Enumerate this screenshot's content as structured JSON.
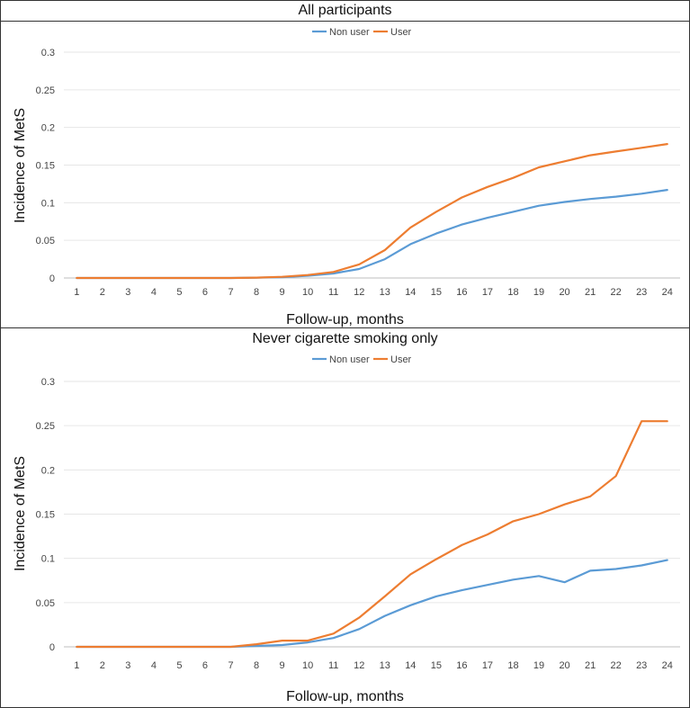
{
  "chart_data": [
    {
      "type": "line",
      "title": "All participants",
      "xlabel": "Follow-up, months",
      "ylabel": "Incidence of MetS",
      "x": [
        1,
        2,
        3,
        4,
        5,
        6,
        7,
        8,
        9,
        10,
        11,
        12,
        13,
        14,
        15,
        16,
        17,
        18,
        19,
        20,
        21,
        22,
        23,
        24
      ],
      "ylim": [
        0,
        0.3
      ],
      "yticks": [
        "0",
        "0.05",
        "0.1",
        "0.15",
        "0.2",
        "0.25",
        "0.3"
      ],
      "ytick_values": [
        0,
        0.05,
        0.1,
        0.15,
        0.2,
        0.25,
        0.3
      ],
      "legend_position": "top-center",
      "grid": true,
      "series": [
        {
          "name": "Non user",
          "color": "#5B9BD5",
          "values": [
            0,
            0,
            0,
            0,
            0,
            0,
            0,
            0.0005,
            0.001,
            0.003,
            0.006,
            0.012,
            0.025,
            0.045,
            0.059,
            0.071,
            0.08,
            0.088,
            0.096,
            0.101,
            0.105,
            0.108,
            0.112,
            0.117
          ]
        },
        {
          "name": "User",
          "color": "#ED7D31",
          "values": [
            0,
            0,
            0,
            0,
            0,
            0,
            0,
            0.0005,
            0.0015,
            0.004,
            0.008,
            0.018,
            0.037,
            0.067,
            0.088,
            0.107,
            0.121,
            0.133,
            0.147,
            0.155,
            0.163,
            0.168,
            0.173,
            0.178
          ]
        }
      ]
    },
    {
      "type": "line",
      "title": "Never cigarette smoking only",
      "xlabel": "Follow-up, months",
      "ylabel": "Incidence of MetS",
      "x": [
        1,
        2,
        3,
        4,
        5,
        6,
        7,
        8,
        9,
        10,
        11,
        12,
        13,
        14,
        15,
        16,
        17,
        18,
        19,
        20,
        21,
        22,
        23,
        24
      ],
      "ylim": [
        0,
        0.3
      ],
      "yticks": [
        "0",
        "0.05",
        "0.1",
        "0.15",
        "0.2",
        "0.25",
        "0.3"
      ],
      "ytick_values": [
        0,
        0.05,
        0.1,
        0.15,
        0.2,
        0.25,
        0.3
      ],
      "legend_position": "top-center",
      "grid": true,
      "series": [
        {
          "name": "Non user",
          "color": "#5B9BD5",
          "values": [
            0,
            0,
            0,
            0,
            0,
            0,
            0,
            0.001,
            0.002,
            0.005,
            0.01,
            0.02,
            0.035,
            0.047,
            0.057,
            0.064,
            0.07,
            0.076,
            0.08,
            0.073,
            0.086,
            0.088,
            0.092,
            0.098
          ]
        },
        {
          "name": "User",
          "color": "#ED7D31",
          "values": [
            0,
            0,
            0,
            0,
            0,
            0,
            0,
            0.003,
            0.007,
            0.007,
            0.015,
            0.033,
            0.057,
            0.082,
            0.099,
            0.115,
            0.127,
            0.142,
            0.15,
            0.161,
            0.17,
            0.193,
            0.255,
            0.255
          ]
        }
      ]
    }
  ]
}
